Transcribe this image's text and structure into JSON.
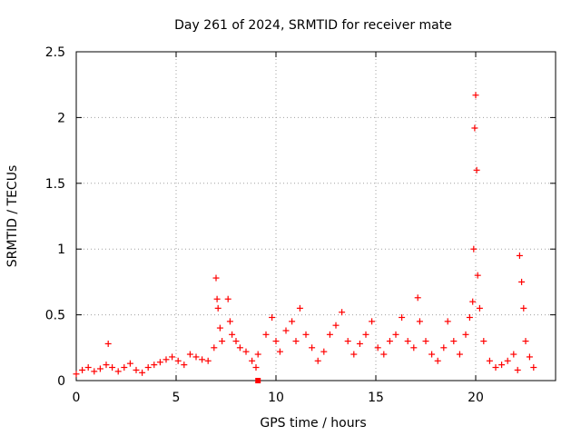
{
  "chart_data": {
    "type": "scatter",
    "title": "Day 261 of 2024, SRMTID for receiver mate",
    "xlabel": "GPS time / hours",
    "ylabel": "SRMTID / TECUs",
    "xlim": [
      0,
      24
    ],
    "ylim": [
      0,
      2.5
    ],
    "xticks": [
      0,
      5,
      10,
      15,
      20
    ],
    "yticks": [
      0,
      0.5,
      1,
      1.5,
      2,
      2.5
    ],
    "xtick_labels": [
      "0",
      "5",
      "10",
      "15",
      "20"
    ],
    "ytick_labels": [
      "0",
      "0.5",
      "1",
      "1.5",
      "2",
      "2.5"
    ],
    "grid": true,
    "marker": "plus",
    "color": "#ff0000",
    "series": [
      {
        "name": "SRMTID",
        "x": [
          0.0,
          0.3,
          0.6,
          0.9,
          1.2,
          1.5,
          1.6,
          1.8,
          2.1,
          2.4,
          2.7,
          3.0,
          3.3,
          3.6,
          3.9,
          4.2,
          4.5,
          4.8,
          5.1,
          5.4,
          5.7,
          6.0,
          6.3,
          6.6,
          6.9,
          7.0,
          7.05,
          7.1,
          7.2,
          7.3,
          7.6,
          7.7,
          7.8,
          8.0,
          8.2,
          8.5,
          8.8,
          9.0,
          9.1,
          9.5,
          9.8,
          10.0,
          10.2,
          10.5,
          10.8,
          11.0,
          11.2,
          11.5,
          11.8,
          12.1,
          12.4,
          12.7,
          13.0,
          13.3,
          13.6,
          13.9,
          14.2,
          14.5,
          14.8,
          15.1,
          15.4,
          15.7,
          16.0,
          16.3,
          16.6,
          16.9,
          17.1,
          17.2,
          17.5,
          17.8,
          18.1,
          18.4,
          18.6,
          18.9,
          19.2,
          19.5,
          19.7,
          19.85,
          19.9,
          19.95,
          20.0,
          20.05,
          20.1,
          20.2,
          20.4,
          20.7,
          21.0,
          21.3,
          21.6,
          21.9,
          22.1,
          22.2,
          22.3,
          22.4,
          22.5,
          22.7,
          22.9
        ],
        "y": [
          0.05,
          0.08,
          0.1,
          0.07,
          0.09,
          0.12,
          0.28,
          0.1,
          0.07,
          0.1,
          0.13,
          0.08,
          0.06,
          0.1,
          0.12,
          0.14,
          0.16,
          0.18,
          0.15,
          0.12,
          0.2,
          0.18,
          0.16,
          0.15,
          0.25,
          0.78,
          0.62,
          0.55,
          0.4,
          0.3,
          0.62,
          0.45,
          0.35,
          0.3,
          0.25,
          0.22,
          0.15,
          0.1,
          0.2,
          0.35,
          0.48,
          0.3,
          0.22,
          0.38,
          0.45,
          0.3,
          0.55,
          0.35,
          0.25,
          0.15,
          0.22,
          0.35,
          0.42,
          0.52,
          0.3,
          0.2,
          0.28,
          0.35,
          0.45,
          0.25,
          0.2,
          0.3,
          0.35,
          0.48,
          0.3,
          0.25,
          0.63,
          0.45,
          0.3,
          0.2,
          0.15,
          0.25,
          0.45,
          0.3,
          0.2,
          0.35,
          0.48,
          0.6,
          1.0,
          1.92,
          2.17,
          1.6,
          0.8,
          0.55,
          0.3,
          0.15,
          0.1,
          0.12,
          0.15,
          0.2,
          0.08,
          0.95,
          0.75,
          0.55,
          0.3,
          0.18,
          0.1
        ]
      }
    ],
    "highlight_point": {
      "x": 9.1,
      "y": 0.0,
      "marker": "square"
    }
  }
}
